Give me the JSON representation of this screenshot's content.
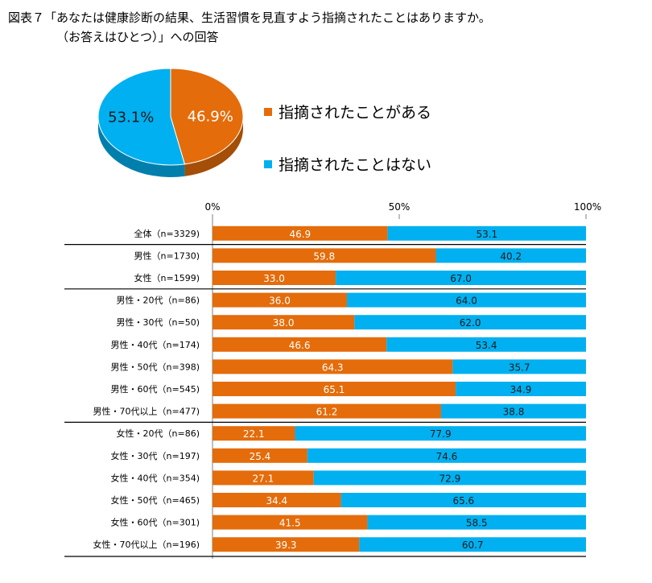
{
  "title": {
    "line1": "図表７「あなたは健康診断の結果、生活習慣を見直すよう指摘されたことはありますか。",
    "line2": "（お答えはひとつ）」への回答"
  },
  "colors": {
    "orange": "#E46C0A",
    "blue": "#00B0F0",
    "axis": "#7f7f7f",
    "separator": "#000000"
  },
  "legend": [
    {
      "label": "指摘されたことがある",
      "color": "#E46C0A"
    },
    {
      "label": "指摘されたことはない",
      "color": "#00B0F0"
    }
  ],
  "chart_data": [
    {
      "type": "pie",
      "title": "",
      "slices": [
        {
          "label": "指摘されたことがある",
          "value": 46.9,
          "display": "46.9%",
          "color": "#E46C0A"
        },
        {
          "label": "指摘されたことはない",
          "value": 53.1,
          "display": "53.1%",
          "color": "#00B0F0"
        }
      ]
    },
    {
      "type": "bar",
      "orientation": "horizontal",
      "stacked": true,
      "x_ticks": [
        "0%",
        "50%",
        "100%"
      ],
      "xlim": [
        0,
        100
      ],
      "categories": [
        "全体（n=3329)",
        "男性（n=1730)",
        "女性（n=1599)",
        "男性・20代（n=86)",
        "男性・30代（n=50)",
        "男性・40代（n=174)",
        "男性・50代（n=398)",
        "男性・60代（n=545)",
        "男性・70代以上（n=477)",
        "女性・20代（n=86)",
        "女性・30代（n=197)",
        "女性・40代（n=354)",
        "女性・50代（n=465)",
        "女性・60代（n=301)",
        "女性・70代以上（n=196)"
      ],
      "series": [
        {
          "name": "指摘されたことがある",
          "color": "#E46C0A",
          "values": [
            46.9,
            59.8,
            33.0,
            36.0,
            38.0,
            46.6,
            64.3,
            65.1,
            61.2,
            22.1,
            25.4,
            27.1,
            34.4,
            41.5,
            39.3
          ],
          "labels": [
            "46.9",
            "59.8",
            "33.0",
            "36.0",
            "38.0",
            "46.6",
            "64.3",
            "65.1",
            "61.2",
            "22.1",
            "25.4",
            "27.1",
            "34.4",
            "41.5",
            "39.3"
          ]
        },
        {
          "name": "指摘されたことはない",
          "color": "#00B0F0",
          "values": [
            53.1,
            40.2,
            67.0,
            64.0,
            62.0,
            53.4,
            35.7,
            34.9,
            38.8,
            77.9,
            74.6,
            72.9,
            65.6,
            58.5,
            60.7
          ],
          "labels": [
            "53.1",
            "40.2",
            "67.0",
            "64.0",
            "62.0",
            "53.4",
            "35.7",
            "34.9",
            "38.8",
            "77.9",
            "74.6",
            "72.9",
            "65.6",
            "58.5",
            "60.7"
          ]
        }
      ],
      "group_separators_after": [
        0,
        2,
        8
      ]
    }
  ]
}
